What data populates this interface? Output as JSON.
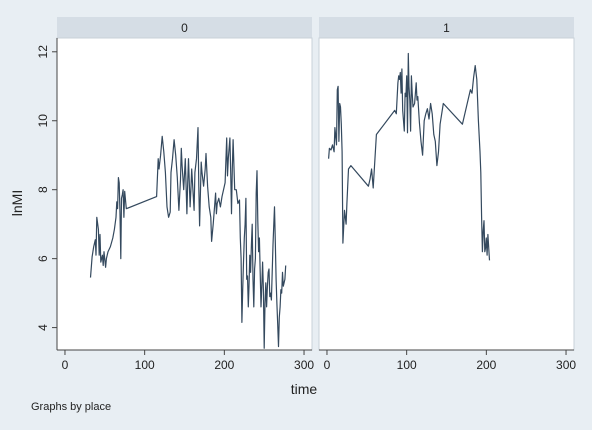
{
  "chart_data": {
    "type": "line",
    "ylabel": "lnMI",
    "xlabel": "time",
    "note": "Graphs by place",
    "xlim": [
      -10,
      310
    ],
    "ylim": [
      3.35,
      12.4
    ],
    "xticks": [
      0,
      100,
      200,
      300
    ],
    "yticks": [
      4,
      6,
      8,
      10,
      12
    ],
    "line_color": "#34495e",
    "background": "#e8eef3",
    "panel_header_color": "#d5dde5",
    "panels": [
      {
        "label": "0",
        "points": [
          [
            32,
            5.45
          ],
          [
            34,
            6.05
          ],
          [
            36,
            6.35
          ],
          [
            38,
            6.55
          ],
          [
            39,
            6.1
          ],
          [
            40,
            7.2
          ],
          [
            42,
            6.85
          ],
          [
            43,
            6.1
          ],
          [
            44,
            6.7
          ],
          [
            45,
            5.9
          ],
          [
            47,
            6.1
          ],
          [
            48,
            5.8
          ],
          [
            49,
            6.2
          ],
          [
            51,
            5.75
          ],
          [
            52,
            6.0
          ],
          [
            54,
            6.2
          ],
          [
            57,
            6.35
          ],
          [
            60,
            6.6
          ],
          [
            62,
            6.85
          ],
          [
            64,
            7.2
          ],
          [
            65,
            7.65
          ],
          [
            66,
            7.45
          ],
          [
            67,
            8.35
          ],
          [
            68,
            8.2
          ],
          [
            69,
            7.3
          ],
          [
            70,
            6.0
          ],
          [
            71,
            7.75
          ],
          [
            72,
            7.85
          ],
          [
            73,
            8.0
          ],
          [
            74,
            7.2
          ],
          [
            75,
            7.95
          ],
          [
            77,
            7.45
          ],
          [
            115,
            7.8
          ],
          [
            117,
            8.9
          ],
          [
            118,
            8.6
          ],
          [
            120,
            9.0
          ],
          [
            122,
            9.55
          ],
          [
            124,
            9.1
          ],
          [
            126,
            8.5
          ],
          [
            128,
            7.5
          ],
          [
            130,
            7.2
          ],
          [
            132,
            7.35
          ],
          [
            133,
            8.5
          ],
          [
            135,
            8.9
          ],
          [
            137,
            9.45
          ],
          [
            139,
            9.0
          ],
          [
            141,
            8.35
          ],
          [
            143,
            7.4
          ],
          [
            145,
            8.3
          ],
          [
            146,
            9.2
          ],
          [
            147,
            8.7
          ],
          [
            149,
            8.0
          ],
          [
            151,
            8.9
          ],
          [
            153,
            7.3
          ],
          [
            154,
            8.2
          ],
          [
            155,
            8.9
          ],
          [
            157,
            7.5
          ],
          [
            158,
            8.0
          ],
          [
            159,
            8.6
          ],
          [
            160,
            8.2
          ],
          [
            162,
            7.4
          ],
          [
            163,
            8.5
          ],
          [
            165,
            8.9
          ],
          [
            167,
            9.8
          ],
          [
            168,
            8.1
          ],
          [
            169,
            6.95
          ],
          [
            171,
            8.8
          ],
          [
            172,
            8.5
          ],
          [
            174,
            8.1
          ],
          [
            176,
            8.6
          ],
          [
            177,
            9.05
          ],
          [
            179,
            8.1
          ],
          [
            181,
            7.5
          ],
          [
            183,
            7.2
          ],
          [
            184,
            6.5
          ],
          [
            186,
            7.0
          ],
          [
            188,
            7.6
          ],
          [
            189,
            7.9
          ],
          [
            190,
            7.3
          ],
          [
            191,
            7.6
          ],
          [
            193,
            7.75
          ],
          [
            195,
            7.5
          ],
          [
            197,
            7.8
          ],
          [
            201,
            8.2
          ],
          [
            203,
            9.5
          ],
          [
            204,
            8.4
          ],
          [
            205,
            8.9
          ],
          [
            207,
            9.5
          ],
          [
            208,
            8.5
          ],
          [
            209,
            7.3
          ],
          [
            210,
            8.6
          ],
          [
            211,
            9.45
          ],
          [
            213,
            8.0
          ],
          [
            215,
            8.0
          ],
          [
            217,
            7.6
          ],
          [
            219,
            7.7
          ],
          [
            220,
            6.6
          ],
          [
            221,
            6.0
          ],
          [
            222,
            4.15
          ],
          [
            223,
            5.1
          ],
          [
            224,
            5.9
          ],
          [
            225,
            6.6
          ],
          [
            226,
            7.0
          ],
          [
            227,
            7.75
          ],
          [
            228,
            5.4
          ],
          [
            229,
            5.5
          ],
          [
            230,
            4.6
          ],
          [
            231,
            5.2
          ],
          [
            232,
            6.1
          ],
          [
            233,
            5.6
          ],
          [
            234,
            6.4
          ],
          [
            235,
            7.0
          ],
          [
            236,
            5.4
          ],
          [
            237,
            4.6
          ],
          [
            238,
            5.7
          ],
          [
            239,
            6.0
          ],
          [
            240,
            7.9
          ],
          [
            241,
            8.55
          ],
          [
            242,
            7.1
          ],
          [
            243,
            6.2
          ],
          [
            244,
            6.6
          ],
          [
            245,
            5.6
          ],
          [
            246,
            4.6
          ],
          [
            247,
            5.2
          ],
          [
            248,
            5.9
          ],
          [
            249,
            5.1
          ],
          [
            250,
            3.4
          ],
          [
            251,
            4.7
          ],
          [
            252,
            5.3
          ],
          [
            253,
            4.6
          ],
          [
            254,
            5.2
          ],
          [
            255,
            5.6
          ],
          [
            256,
            5.7
          ],
          [
            257,
            4.9
          ],
          [
            258,
            5.0
          ],
          [
            259,
            4.8
          ],
          [
            260,
            5.6
          ],
          [
            261,
            6.4
          ],
          [
            262,
            7.0
          ],
          [
            263,
            7.5
          ],
          [
            264,
            6.5
          ],
          [
            265,
            5.4
          ],
          [
            266,
            4.7
          ],
          [
            267,
            4.1
          ],
          [
            268,
            3.45
          ],
          [
            269,
            4.3
          ],
          [
            270,
            4.6
          ],
          [
            271,
            5.1
          ],
          [
            272,
            5.0
          ],
          [
            273,
            5.6
          ],
          [
            274,
            5.2
          ],
          [
            276,
            5.4
          ],
          [
            277,
            5.8
          ]
        ]
      },
      {
        "label": "1",
        "points": [
          [
            2,
            8.9
          ],
          [
            3,
            9.2
          ],
          [
            5,
            9.15
          ],
          [
            7,
            9.3
          ],
          [
            9,
            9.1
          ],
          [
            10,
            9.8
          ],
          [
            12,
            9.3
          ],
          [
            13,
            10.9
          ],
          [
            14,
            11.0
          ],
          [
            15,
            9.4
          ],
          [
            16,
            10.5
          ],
          [
            17,
            10.4
          ],
          [
            18,
            9.9
          ],
          [
            19,
            9.1
          ],
          [
            20,
            6.45
          ],
          [
            22,
            7.4
          ],
          [
            24,
            7.0
          ],
          [
            25,
            7.6
          ],
          [
            27,
            8.6
          ],
          [
            30,
            8.7
          ],
          [
            52,
            8.1
          ],
          [
            54,
            8.3
          ],
          [
            56,
            8.6
          ],
          [
            58,
            8.05
          ],
          [
            62,
            9.6
          ],
          [
            85,
            10.3
          ],
          [
            87,
            10.2
          ],
          [
            89,
            11.1
          ],
          [
            90,
            11.3
          ],
          [
            91,
            11.2
          ],
          [
            92,
            11.4
          ],
          [
            93,
            10.8
          ],
          [
            94,
            11.5
          ],
          [
            95,
            10.3
          ],
          [
            96,
            10.0
          ],
          [
            97,
            9.7
          ],
          [
            98,
            10.8
          ],
          [
            99,
            10.7
          ],
          [
            100,
            11.3
          ],
          [
            101,
            9.65
          ],
          [
            102,
            11.95
          ],
          [
            103,
            11.0
          ],
          [
            104,
            10.6
          ],
          [
            105,
            9.7
          ],
          [
            106,
            11.3
          ],
          [
            107,
            10.8
          ],
          [
            108,
            10.4
          ],
          [
            110,
            10.5
          ],
          [
            112,
            11.1
          ],
          [
            113,
            10.6
          ],
          [
            114,
            10.7
          ],
          [
            116,
            9.95
          ],
          [
            118,
            9.4
          ],
          [
            120,
            9.0
          ],
          [
            122,
            10.0
          ],
          [
            124,
            10.2
          ],
          [
            126,
            10.35
          ],
          [
            128,
            10.05
          ],
          [
            130,
            10.5
          ],
          [
            132,
            10.2
          ],
          [
            134,
            9.6
          ],
          [
            136,
            9.4
          ],
          [
            138,
            8.7
          ],
          [
            140,
            9.1
          ],
          [
            142,
            9.9
          ],
          [
            144,
            10.2
          ],
          [
            146,
            10.5
          ],
          [
            170,
            9.9
          ],
          [
            180,
            10.9
          ],
          [
            182,
            10.8
          ],
          [
            184,
            11.25
          ],
          [
            186,
            11.6
          ],
          [
            188,
            11.2
          ],
          [
            190,
            10.0
          ],
          [
            192,
            9.1
          ],
          [
            193,
            8.5
          ],
          [
            194,
            7.2
          ],
          [
            195,
            6.2
          ],
          [
            196,
            6.8
          ],
          [
            197,
            7.1
          ],
          [
            198,
            6.2
          ],
          [
            199,
            6.3
          ],
          [
            200,
            6.6
          ],
          [
            201,
            6.1
          ],
          [
            202,
            6.7
          ],
          [
            204,
            5.95
          ]
        ]
      }
    ]
  }
}
